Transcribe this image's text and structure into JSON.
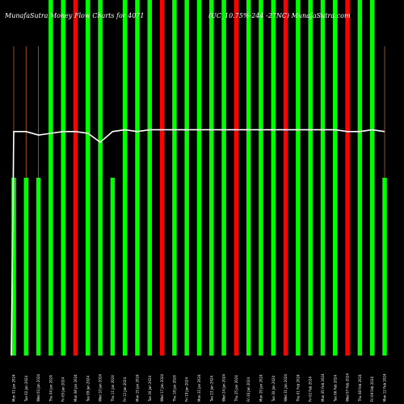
{
  "header": {
    "left_title": "MunafaSutra  Money Flow  Charts for 4071",
    "right_title": "(UC_10.75%-244 -27NC)  MunafaSutra.com"
  },
  "colors": {
    "background": "#000000",
    "up": "#00ff00",
    "down": "#ff0000",
    "line": "#ffffff",
    "stem": "#b8621a",
    "text": "#ffffff"
  },
  "chart_data": {
    "type": "bar",
    "title": "MunafaSutra  Money Flow  Charts for 4071",
    "subtitle": "(UC_10.75%-244 -27NC)  MunafaSutra.com",
    "xlabel": "",
    "ylabel": "",
    "ylim": [
      0,
      100
    ],
    "grid": false,
    "legend": "none",
    "categories": [
      "Mon 01 Jan 2024",
      "Tue 02 Jan 2024",
      "Wed 03 Jan 2024",
      "Thu 04 Jan 2024",
      "Fri 05 Jan 2024",
      "Mon 08 Jan 2024",
      "Tue 09 Jan 2024",
      "Wed 10 Jan 2024",
      "Thu 11 Jan 2024",
      "Fri 12 Jan 2024",
      "Mon 15 Jan 2024",
      "Tue 16 Jan 2024",
      "Wed 17 Jan 2024",
      "Thu 18 Jan 2024",
      "Fri 19 Jan 2024",
      "Mon 22 Jan 2024",
      "Tue 23 Jan 2024",
      "Wed 24 Jan 2024",
      "Thu 25 Jan 2024",
      "Fri 26 Jan 2024",
      "Mon 29 Jan 2024",
      "Tue 30 Jan 2024",
      "Wed 31 Jan 2024",
      "Thu 01 Feb 2024",
      "Fri 02 Feb 2024",
      "Mon 05 Feb 2024",
      "Tue 06 Feb 2024",
      "Wed 07 Feb 2024",
      "Thu 08 Feb 2024",
      "Fri 09 Feb 2024",
      "Mon 12 Feb 2024"
    ],
    "bar_values": [
      50,
      50,
      50,
      100,
      100,
      100,
      100,
      100,
      50,
      100,
      100,
      100,
      100,
      100,
      100,
      100,
      100,
      100,
      100,
      100,
      100,
      100,
      100,
      100,
      100,
      100,
      100,
      100,
      100,
      100,
      50
    ],
    "bar_colors": [
      "up",
      "up",
      "up",
      "up",
      "up",
      "down",
      "up",
      "up",
      "up",
      "up",
      "up",
      "up",
      "down",
      "up",
      "up",
      "up",
      "up",
      "up",
      "down",
      "up",
      "up",
      "up",
      "down",
      "up",
      "up",
      "up",
      "up",
      "down",
      "up",
      "up",
      "up"
    ],
    "stem_values": [
      87,
      87,
      87,
      0,
      0,
      0,
      0,
      0,
      0,
      0,
      0,
      0,
      0,
      0,
      0,
      0,
      0,
      0,
      0,
      0,
      0,
      0,
      0,
      0,
      0,
      0,
      0,
      0,
      0,
      0,
      87
    ],
    "line_values": [
      63,
      63,
      62,
      62.5,
      63,
      63,
      62.5,
      60,
      63,
      63.5,
      63,
      63.5,
      63.5,
      63.5,
      63.5,
      63.5,
      63.5,
      63.5,
      63.5,
      63.5,
      63.5,
      63.5,
      63.5,
      63.5,
      63.5,
      63.5,
      63.5,
      63,
      63,
      63.5,
      63
    ]
  }
}
